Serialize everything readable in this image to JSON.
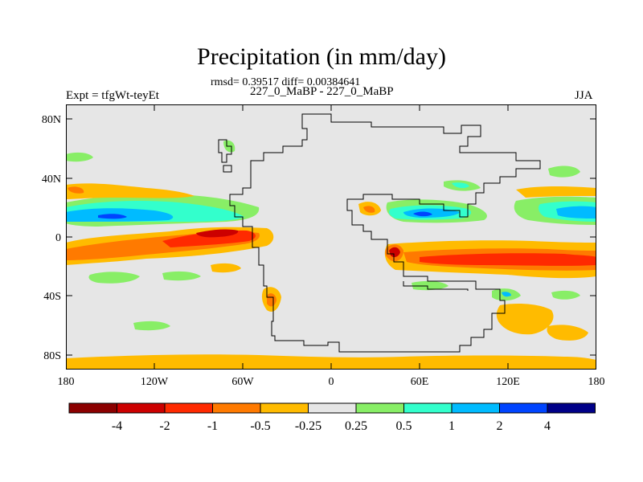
{
  "plot": {
    "title": "Precipitation (in mm/day)",
    "stats": "rmsd= 0.39517 diff= 0.00384641",
    "left_label": "Expt = tfgWt-teyEt",
    "center_label": "227_0_MaBP - 227_0_MaBP",
    "right_label": "JJA"
  },
  "axes": {
    "y_ticks": [
      "80N",
      "40N",
      "0",
      "40S",
      "80S"
    ],
    "x_ticks": [
      "180",
      "120W",
      "60W",
      "0",
      "60E",
      "120E",
      "180"
    ]
  },
  "colorbar": {
    "colors": [
      "#8b0000",
      "#cc0000",
      "#ff2a00",
      "#ff7a00",
      "#ffbb00",
      "#e6e6e6",
      "#88ee66",
      "#33ffcc",
      "#00bbff",
      "#0044ff",
      "#000088"
    ],
    "labels": [
      "-4",
      "-2",
      "-1",
      "-0.5",
      "-0.25",
      "0.25",
      "0.5",
      "1",
      "2",
      "4"
    ]
  },
  "chart_data": {
    "type": "heatmap",
    "title": "Precipitation (in mm/day)",
    "subtitle": "rmsd= 0.39517 diff= 0.00384641",
    "xlabel": "",
    "ylabel": "",
    "xlim": [
      -180,
      180
    ],
    "ylim": [
      -90,
      90
    ],
    "x_tick_values": [
      -180,
      -120,
      -60,
      0,
      60,
      120,
      180
    ],
    "y_tick_values": [
      80,
      40,
      0,
      -40,
      -80
    ],
    "levels": [
      -4,
      -2,
      -1,
      -0.5,
      -0.25,
      0.25,
      0.5,
      1,
      2,
      4
    ],
    "units": "mm/day",
    "features": [
      {
        "name": "central-pacific-neg-band",
        "lon": [
          -180,
          -45
        ],
        "lat": [
          -14,
          -2
        ],
        "value": -0.6
      },
      {
        "name": "east-pacific-strong-neg",
        "lon": [
          -95,
          -55
        ],
        "lat": [
          -6,
          0
        ],
        "value": -1.5
      },
      {
        "name": "east-pacific-core-neg",
        "lon": [
          -78,
          -60
        ],
        "lat": [
          -4,
          -1
        ],
        "value": -3
      },
      {
        "name": "north-pacific-pos-band",
        "lon": [
          -180,
          -85
        ],
        "lat": [
          6,
          20
        ],
        "value": 0.8
      },
      {
        "name": "north-pacific-pos-core",
        "lon": [
          -180,
          -130
        ],
        "lat": [
          9,
          15
        ],
        "value": 1.5
      },
      {
        "name": "north-pacific-pos-max",
        "lon": [
          -150,
          -140
        ],
        "lat": [
          11,
          13
        ],
        "value": 2.5
      },
      {
        "name": "north-pacific-neg-band",
        "lon": [
          -180,
          -110
        ],
        "lat": [
          25,
          33
        ],
        "value": -0.3
      },
      {
        "name": "tethys-pos-band",
        "lon": [
          35,
          90
        ],
        "lat": [
          12,
          18
        ],
        "value": 1.5
      },
      {
        "name": "tethys-pos-core",
        "lon": [
          50,
          70
        ],
        "lat": [
          13,
          16
        ],
        "value": 3
      },
      {
        "name": "tethys-neg-spot",
        "lon": [
          22,
          40
        ],
        "lat": [
          14,
          20
        ],
        "value": -0.4
      },
      {
        "name": "southern-tethys-neg-band",
        "lon": [
          35,
          180
        ],
        "lat": [
          -20,
          -7
        ],
        "value": -0.6
      },
      {
        "name": "southern-tethys-strong-neg",
        "lon": [
          60,
          180
        ],
        "lat": [
          -17,
          -10
        ],
        "value": -1.5
      },
      {
        "name": "coastal-dipole-neg",
        "lon": [
          25,
          45
        ],
        "lat": [
          -14,
          -8
        ],
        "value": -3
      },
      {
        "name": "panthalassa-ne-pos",
        "lon": [
          145,
          180
        ],
        "lat": [
          14,
          20
        ],
        "value": 1.5
      },
      {
        "name": "south-mid-lat-pos",
        "lon": [
          -150,
          -100
        ],
        "lat": [
          -40,
          -35
        ],
        "value": 0.6
      },
      {
        "name": "south-america-neg-spot",
        "lon": [
          -55,
          -45
        ],
        "lat": [
          -50,
          -38
        ],
        "value": -1
      },
      {
        "name": "south-indian-neg",
        "lon": [
          115,
          155
        ],
        "lat": [
          -75,
          -55
        ],
        "value": -0.35
      },
      {
        "name": "south-polar-neg-band",
        "lon": [
          -180,
          180
        ],
        "lat": [
          -90,
          -84
        ],
        "value": -0.3
      }
    ]
  }
}
